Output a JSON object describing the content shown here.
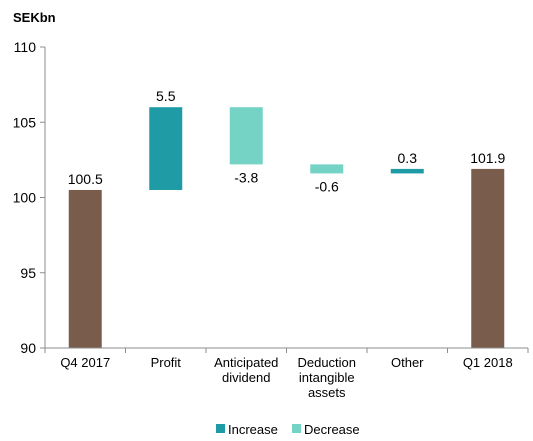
{
  "chart_data": {
    "type": "bar",
    "subtype": "waterfall",
    "ylabel": "SEKbn",
    "ylim": [
      90,
      110
    ],
    "yticks": [
      90,
      95,
      100,
      105,
      110
    ],
    "categories": [
      "Q4 2017",
      "Profit",
      "Anticipated\ndividend",
      "Deduction\nintangible\nassets",
      "Other",
      "Q1 2018"
    ],
    "bars": [
      {
        "category": "Q4 2017",
        "kind": "total",
        "start": 90,
        "end": 100.5,
        "label": "100.5"
      },
      {
        "category": "Profit",
        "kind": "increase",
        "start": 100.5,
        "end": 106.0,
        "label": "5.5"
      },
      {
        "category": "Anticipated dividend",
        "kind": "decrease",
        "start": 106.0,
        "end": 102.2,
        "label": "-3.8"
      },
      {
        "category": "Deduction intangible assets",
        "kind": "decrease",
        "start": 102.2,
        "end": 101.6,
        "label": "-0.6"
      },
      {
        "category": "Other",
        "kind": "increase",
        "start": 101.6,
        "end": 101.9,
        "label": "0.3"
      },
      {
        "category": "Q1 2018",
        "kind": "total",
        "start": 90,
        "end": 101.9,
        "label": "101.9"
      }
    ],
    "legend": [
      {
        "name": "Increase",
        "kind": "increase"
      },
      {
        "name": "Decrease",
        "kind": "decrease"
      }
    ],
    "legend_position": "bottom",
    "grid": false,
    "colors": {
      "total": "#7a5c4d",
      "increase": "#1f9ba6",
      "decrease": "#74d3c5",
      "axis": "#8c8c8c"
    }
  }
}
